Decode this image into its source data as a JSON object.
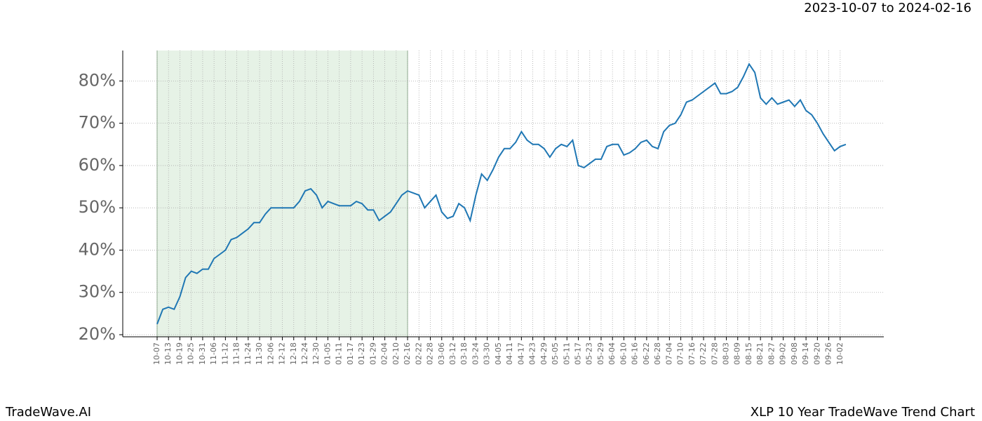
{
  "chart_data": {
    "type": "line",
    "header": "2023-10-07 to 2024-02-16",
    "brand": "TradeWave.AI",
    "title": "XLP 10 Year TradeWave Trend Chart",
    "categories": [
      "10-07",
      null,
      "10-13",
      null,
      "10-19",
      null,
      "10-25",
      null,
      "10-31",
      null,
      "11-06",
      null,
      "11-12",
      null,
      "11-18",
      null,
      "11-24",
      null,
      "11-30",
      null,
      "12-06",
      null,
      "12-12",
      null,
      "12-18",
      null,
      "12-24",
      null,
      "12-30",
      null,
      "01-05",
      null,
      "01-11",
      null,
      "01-17",
      null,
      "01-23",
      null,
      "01-29",
      null,
      "02-04",
      null,
      "02-10",
      null,
      "02-16",
      null,
      "02-22",
      null,
      "02-28",
      null,
      "03-06",
      null,
      "03-12",
      null,
      "03-18",
      null,
      "03-24",
      null,
      "03-30",
      null,
      "04-05",
      null,
      "04-11",
      null,
      "04-17",
      null,
      "04-23",
      null,
      "04-29",
      null,
      "05-05",
      null,
      "05-11",
      null,
      "05-17",
      null,
      "05-23",
      null,
      "05-29",
      null,
      "06-04",
      null,
      "06-10",
      null,
      "06-16",
      null,
      "06-22",
      null,
      "06-28",
      null,
      "07-04",
      null,
      "07-10",
      null,
      "07-16",
      null,
      "07-22",
      null,
      "07-28",
      null,
      "08-03",
      null,
      "08-09",
      null,
      "08-15",
      null,
      "08-21",
      null,
      "08-27",
      null,
      "09-02",
      null,
      "09-08",
      null,
      "09-14",
      null,
      "09-20",
      null,
      "09-26",
      null,
      "10-02",
      null
    ],
    "series": [
      {
        "color": "#1f77b4",
        "values": [
          22.5,
          26,
          26.5,
          26,
          29,
          33.5,
          35,
          34.5,
          35.5,
          35.5,
          38,
          39,
          40,
          42.5,
          43,
          44,
          45,
          46.5,
          46.5,
          48.5,
          50,
          50,
          50,
          50,
          50,
          51.5,
          54,
          54.5,
          53,
          50,
          51.5,
          51,
          50.5,
          50.5,
          50.5,
          51.5,
          51,
          49.5,
          49.5,
          47,
          48,
          49,
          51,
          53,
          54,
          53.5,
          53,
          50,
          51.5,
          53,
          49,
          47.5,
          48,
          51,
          50,
          47,
          53,
          58,
          56.5,
          59,
          62,
          64,
          64,
          65.5,
          68,
          66,
          65,
          65,
          64,
          62,
          64,
          65,
          64.5,
          66,
          60,
          59.5,
          60.5,
          61.5,
          61.5,
          64.5,
          65,
          65,
          62.5,
          63,
          64,
          65.5,
          66,
          64.5,
          64,
          68,
          69.5,
          70,
          72,
          75,
          75.5,
          76.5,
          77.5,
          78.5,
          79.5,
          77,
          77,
          77.5,
          78.5,
          81,
          84,
          82,
          76,
          74.5,
          76,
          74.5,
          75,
          75.5,
          74,
          75.5,
          73,
          72,
          70,
          67.5,
          65.5,
          63.5,
          64.5,
          65
        ]
      }
    ],
    "highlight": [
      "10-07",
      "02-16"
    ],
    "highlight_color": "#e6f2e6",
    "ylim": [
      19.5,
      87.2
    ],
    "yticks": [
      {
        "value": 20,
        "label": "20%"
      },
      {
        "value": 30,
        "label": "30%"
      },
      {
        "value": 40,
        "label": "40%"
      },
      {
        "value": 50,
        "label": "50%"
      },
      {
        "value": 60,
        "label": "60%"
      },
      {
        "value": 70,
        "label": "70%"
      },
      {
        "value": 80,
        "label": "80%"
      }
    ],
    "grid": true
  }
}
